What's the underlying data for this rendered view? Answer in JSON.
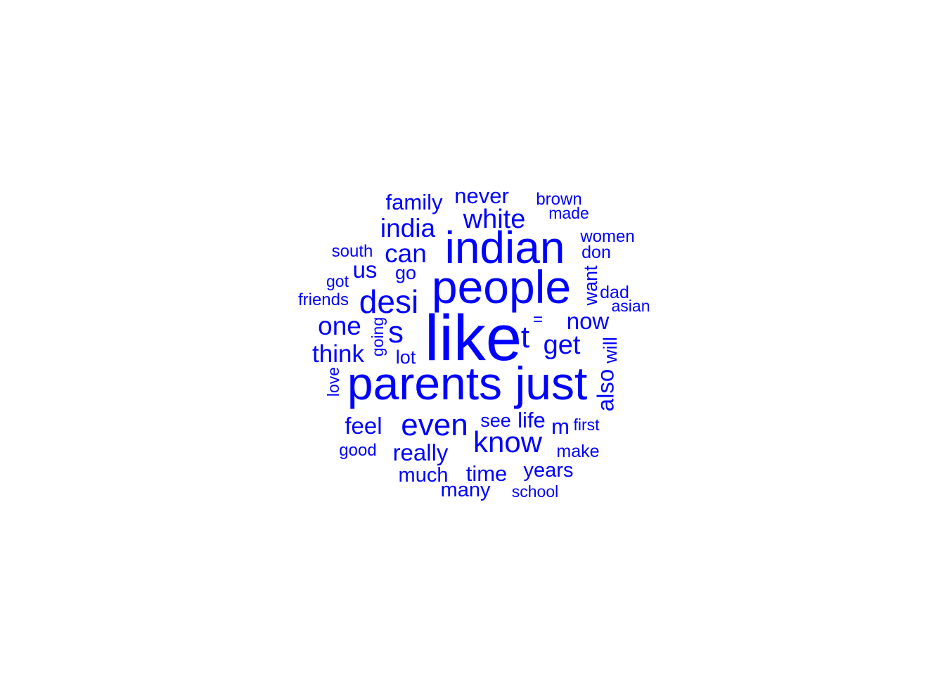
{
  "word_cloud": {
    "color": "#0000ff",
    "words": [
      {
        "text": "like",
        "weight": 1.0
      },
      {
        "text": "people",
        "weight": 0.9
      },
      {
        "text": "parents",
        "weight": 0.85
      },
      {
        "text": "just",
        "weight": 0.84
      },
      {
        "text": "indian",
        "weight": 0.8
      },
      {
        "text": "desi",
        "weight": 0.6
      },
      {
        "text": "even",
        "weight": 0.55
      },
      {
        "text": "know",
        "weight": 0.53
      },
      {
        "text": "t",
        "weight": 0.5
      },
      {
        "text": "s",
        "weight": 0.5
      },
      {
        "text": "white",
        "weight": 0.46
      },
      {
        "text": "get",
        "weight": 0.46
      },
      {
        "text": "india",
        "weight": 0.45
      },
      {
        "text": "can",
        "weight": 0.44
      },
      {
        "text": "one",
        "weight": 0.44
      },
      {
        "text": "think",
        "weight": 0.4
      },
      {
        "text": "now",
        "weight": 0.38
      },
      {
        "text": "feel",
        "weight": 0.38
      },
      {
        "text": "really",
        "weight": 0.38
      },
      {
        "text": "also",
        "weight": 0.38
      },
      {
        "text": "never",
        "weight": 0.36
      },
      {
        "text": "family",
        "weight": 0.36
      },
      {
        "text": "us",
        "weight": 0.36
      },
      {
        "text": "time",
        "weight": 0.36
      },
      {
        "text": "m",
        "weight": 0.36
      },
      {
        "text": "life",
        "weight": 0.35
      },
      {
        "text": "years",
        "weight": 0.35
      },
      {
        "text": "much",
        "weight": 0.35
      },
      {
        "text": "many",
        "weight": 0.34
      },
      {
        "text": "want",
        "weight": 0.33
      },
      {
        "text": "will",
        "weight": 0.33
      },
      {
        "text": "lot",
        "weight": 0.33
      },
      {
        "text": "go",
        "weight": 0.32
      },
      {
        "text": "see",
        "weight": 0.32
      },
      {
        "text": "make",
        "weight": 0.3
      },
      {
        "text": "dad",
        "weight": 0.3
      },
      {
        "text": "don",
        "weight": 0.3
      },
      {
        "text": "women",
        "weight": 0.3
      },
      {
        "text": "brown",
        "weight": 0.3
      },
      {
        "text": "made",
        "weight": 0.28
      },
      {
        "text": "south",
        "weight": 0.3
      },
      {
        "text": "friends",
        "weight": 0.3
      },
      {
        "text": "asian",
        "weight": 0.28
      },
      {
        "text": "got",
        "weight": 0.28
      },
      {
        "text": "going",
        "weight": 0.28
      },
      {
        "text": "love",
        "weight": 0.28
      },
      {
        "text": "good",
        "weight": 0.28
      },
      {
        "text": "first",
        "weight": 0.28
      },
      {
        "text": "school",
        "weight": 0.28
      },
      {
        "text": "=",
        "weight": 0.28
      }
    ]
  }
}
